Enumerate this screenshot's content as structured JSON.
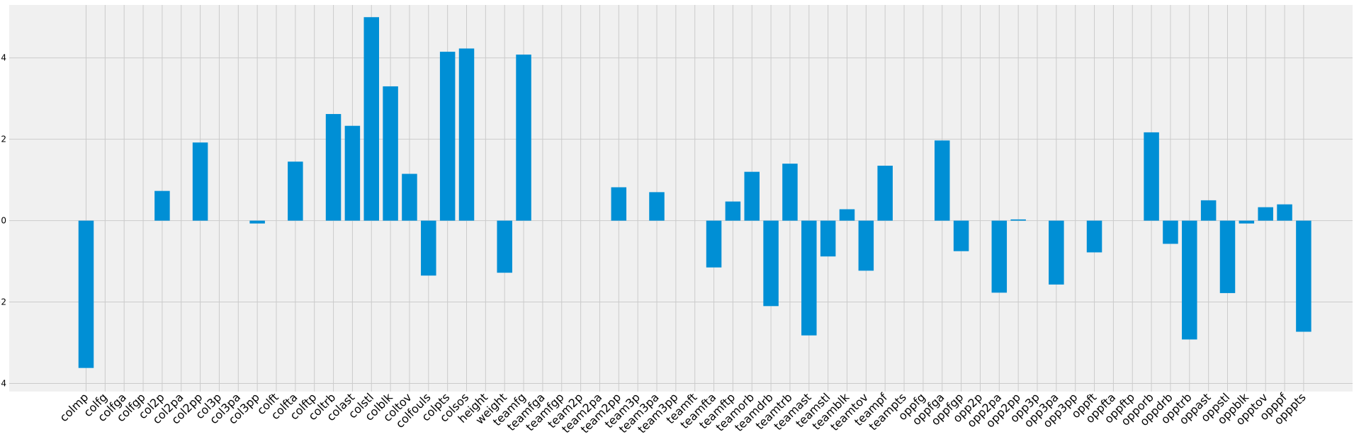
{
  "chart_data": {
    "type": "bar",
    "title": "",
    "xlabel": "",
    "ylabel": "",
    "ylim": [
      -4.2,
      5.3
    ],
    "yticks": [
      -4,
      -2,
      0,
      2,
      4
    ],
    "grid": true,
    "bar_color": "#008fd5",
    "background_color": "#f0f0f0",
    "grid_color": "#cbcbcb",
    "categories": [
      "colmp",
      "colfg",
      "colfga",
      "colfgp",
      "col2p",
      "col2pa",
      "col2pp",
      "col3p",
      "col3pa",
      "col3pp",
      "colft",
      "colfta",
      "colftp",
      "coltrb",
      "colast",
      "colstl",
      "colblk",
      "coltov",
      "colfouls",
      "colpts",
      "colsos",
      "height",
      "weight",
      "teamfg",
      "teamfga",
      "teamfgp",
      "team2p",
      "team2pa",
      "team2pp",
      "team3p",
      "team3pa",
      "team3pp",
      "teamft",
      "teamfta",
      "teamftp",
      "teamorb",
      "teamdrb",
      "teamtrb",
      "teamast",
      "teamstl",
      "teamblk",
      "teamtov",
      "teampf",
      "teampts",
      "oppfg",
      "oppfga",
      "oppfgp",
      "opp2p",
      "opp2pa",
      "opp2pp",
      "opp3p",
      "opp3pa",
      "opp3pp",
      "oppft",
      "oppfta",
      "oppftp",
      "opporb",
      "oppdrb",
      "opptrb",
      "oppast",
      "oppstl",
      "oppblk",
      "opptov",
      "opppf",
      "opppts"
    ],
    "values": [
      -3.62,
      0,
      0,
      0,
      0.73,
      0,
      1.92,
      0,
      0,
      -0.07,
      0,
      1.45,
      0,
      2.62,
      2.33,
      5.0,
      3.3,
      1.15,
      -1.35,
      4.15,
      4.23,
      0,
      -1.28,
      4.08,
      0,
      0,
      0,
      0,
      0.82,
      0,
      0.7,
      0,
      0,
      -1.15,
      0.47,
      1.2,
      -2.1,
      1.4,
      -2.82,
      -0.88,
      0.28,
      -1.23,
      1.35,
      0,
      0,
      1.97,
      -0.75,
      0,
      -1.77,
      0.03,
      0,
      -1.57,
      0,
      -0.78,
      0,
      0,
      2.17,
      -0.57,
      -2.92,
      0.5,
      -1.78,
      -0.07,
      0.33,
      0.4,
      -2.73
    ]
  }
}
